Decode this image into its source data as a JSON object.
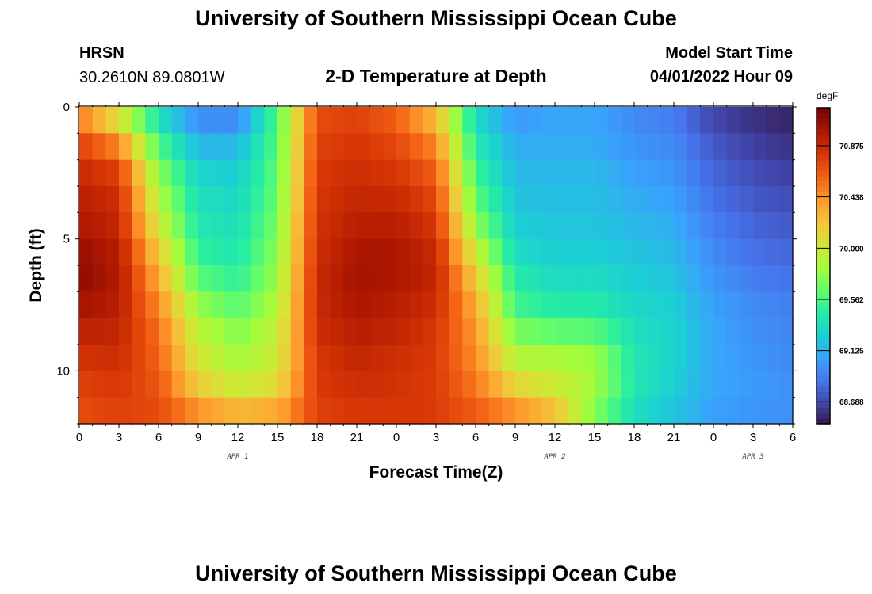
{
  "header": {
    "title": "University of Southern Mississippi Ocean Cube",
    "station": "HRSN",
    "coords": "30.2610N  89.0801W",
    "subtitle": "2-D Temperature at Depth",
    "model_start_label": "Model Start Time",
    "model_start_value": "04/01/2022 Hour 09"
  },
  "footer": {
    "title": "University of Southern Mississippi Ocean Cube"
  },
  "colorbar": {
    "unit": "degF",
    "ticks": [
      "70.875",
      "70.438",
      "70.000",
      "69.562",
      "69.125",
      "68.688"
    ]
  },
  "chart_data": {
    "type": "heatmap",
    "xlabel": "Forecast Time(Z)",
    "ylabel": "Depth (ft)",
    "x_tick_labels": [
      "0",
      "3",
      "6",
      "9",
      "12",
      "15",
      "18",
      "21",
      "0",
      "3",
      "6",
      "9",
      "12",
      "15",
      "18",
      "21",
      "0",
      "3",
      "6"
    ],
    "date_labels": [
      {
        "text": "APR 1",
        "at_hour": 12
      },
      {
        "text": "APR 2",
        "at_hour": 36
      },
      {
        "text": "APR 3",
        "at_hour": 51
      }
    ],
    "y_tick_labels": [
      "0",
      "5",
      "10"
    ],
    "xlim_hours": [
      0,
      54
    ],
    "ylim_ft": [
      0,
      12
    ],
    "color_scale": {
      "min": 68.5,
      "max": 71.2,
      "unit": "degF",
      "stops": [
        "#30123b",
        "#4145ab",
        "#4675ed",
        "#39a2fc",
        "#1bcfd4",
        "#24eca6",
        "#61fc6c",
        "#a4fc3b",
        "#d1e834",
        "#f3c63a",
        "#fe9b2d",
        "#f36315",
        "#d93806",
        "#b11901",
        "#7a0403"
      ]
    },
    "hours": [
      0,
      3,
      6,
      9,
      12,
      15,
      18,
      21,
      24,
      27,
      30,
      33,
      36,
      39,
      42,
      45,
      48,
      51,
      54
    ],
    "depths_ft": [
      0,
      1,
      2,
      3,
      4,
      5,
      6,
      7,
      8,
      9,
      10,
      11,
      12
    ],
    "values_degF": [
      [
        70.4,
        69.9,
        69.3,
        68.9,
        68.9,
        69.6,
        70.7,
        70.75,
        70.6,
        70.2,
        69.3,
        69.0,
        69.1,
        69.1,
        68.95,
        68.9,
        68.65,
        68.6,
        68.55
      ],
      [
        70.7,
        70.3,
        69.5,
        69.1,
        69.1,
        69.6,
        70.75,
        70.8,
        70.7,
        70.4,
        69.4,
        69.1,
        69.1,
        69.1,
        69.0,
        68.95,
        68.75,
        68.65,
        68.6
      ],
      [
        70.85,
        70.7,
        69.7,
        69.25,
        69.25,
        69.65,
        70.8,
        70.85,
        70.8,
        70.6,
        69.5,
        69.15,
        69.15,
        69.15,
        69.05,
        69.0,
        68.8,
        68.7,
        68.65
      ],
      [
        70.95,
        70.85,
        69.85,
        69.35,
        69.3,
        69.65,
        70.8,
        70.9,
        70.85,
        70.7,
        69.6,
        69.2,
        69.2,
        69.2,
        69.1,
        69.05,
        68.85,
        68.75,
        68.7
      ],
      [
        71.0,
        70.9,
        69.95,
        69.4,
        69.35,
        69.7,
        70.85,
        70.95,
        70.95,
        70.8,
        69.7,
        69.25,
        69.2,
        69.2,
        69.15,
        69.1,
        68.9,
        68.8,
        68.75
      ],
      [
        71.05,
        70.95,
        70.1,
        69.45,
        69.4,
        69.75,
        70.85,
        71.0,
        71.0,
        70.85,
        69.9,
        69.3,
        69.25,
        69.25,
        69.2,
        69.15,
        68.95,
        68.85,
        68.8
      ],
      [
        71.15,
        71.0,
        70.3,
        69.55,
        69.45,
        69.8,
        70.9,
        71.05,
        71.05,
        70.95,
        70.1,
        69.4,
        69.3,
        69.3,
        69.25,
        69.2,
        69.0,
        68.9,
        68.85
      ],
      [
        71.1,
        71.0,
        70.4,
        69.7,
        69.55,
        69.85,
        70.9,
        71.05,
        71.0,
        70.9,
        70.3,
        69.5,
        69.4,
        69.4,
        69.3,
        69.25,
        69.05,
        68.95,
        68.9
      ],
      [
        71.0,
        70.95,
        70.55,
        69.9,
        69.7,
        69.95,
        70.9,
        71.0,
        70.95,
        70.85,
        70.4,
        69.6,
        69.5,
        69.5,
        69.35,
        69.3,
        69.1,
        69.0,
        68.95
      ],
      [
        70.9,
        70.9,
        70.6,
        70.0,
        69.8,
        70.0,
        70.85,
        70.95,
        70.9,
        70.8,
        70.45,
        69.85,
        69.8,
        69.75,
        69.4,
        69.3,
        69.1,
        69.0,
        68.95
      ],
      [
        70.8,
        70.85,
        70.65,
        70.1,
        69.9,
        70.05,
        70.8,
        70.9,
        70.85,
        70.8,
        70.5,
        70.0,
        69.95,
        69.9,
        69.45,
        69.3,
        69.1,
        69.05,
        69.0
      ],
      [
        70.75,
        70.8,
        70.7,
        70.3,
        70.1,
        70.2,
        70.8,
        70.85,
        70.85,
        70.8,
        70.6,
        70.3,
        70.1,
        69.8,
        69.4,
        69.25,
        69.1,
        69.05,
        69.0
      ],
      [
        70.7,
        70.75,
        70.75,
        70.6,
        70.5,
        70.5,
        70.75,
        70.8,
        70.8,
        70.8,
        70.7,
        70.6,
        70.4,
        69.7,
        69.35,
        69.2,
        69.05,
        69.0,
        69.0
      ]
    ]
  }
}
